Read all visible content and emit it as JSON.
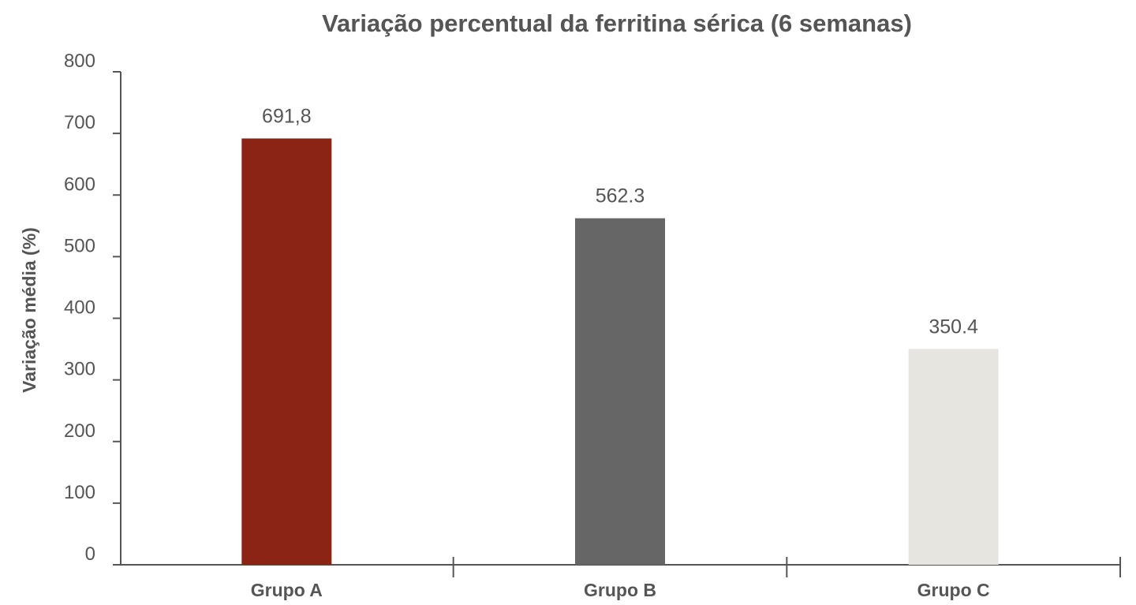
{
  "chart_data": {
    "type": "bar",
    "title": "Variação percentual da ferritina sérica (6 semanas)",
    "xlabel": "",
    "ylabel": "Variação média (%)",
    "ylim": [
      0,
      800
    ],
    "yticks": [
      "0",
      "100",
      "200",
      "300",
      "400",
      "500",
      "600",
      "700",
      "800"
    ],
    "categories": [
      "Grupo A",
      "Grupo B",
      "Grupo C"
    ],
    "values": [
      691.8,
      562.3,
      350.4
    ],
    "value_labels": [
      "691,8",
      "562.3",
      "350.4"
    ],
    "colors": [
      "#8B2415",
      "#666666",
      "#E7E5E0"
    ],
    "grid": false,
    "legend": "none"
  }
}
